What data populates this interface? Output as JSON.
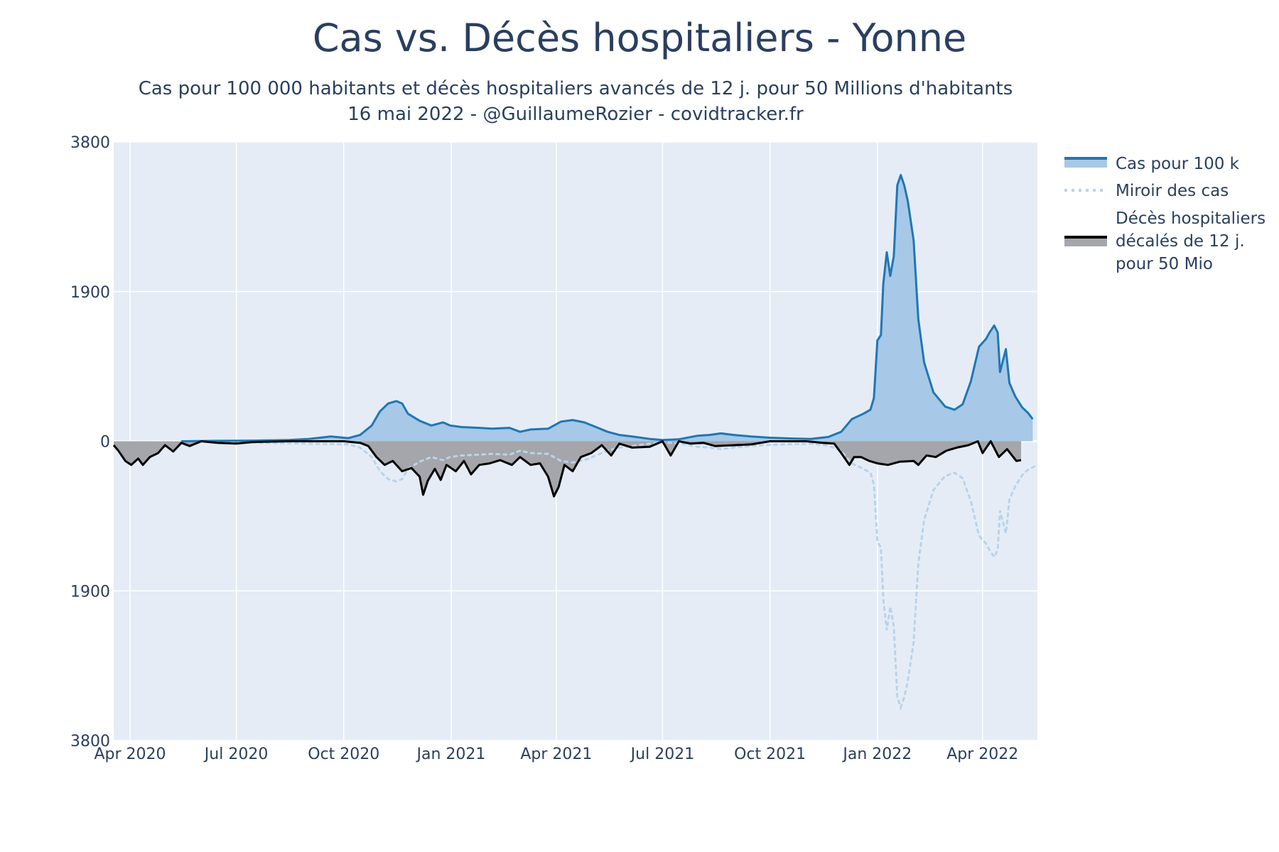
{
  "title": "Cas vs. Décès hospitaliers - Yonne",
  "subtitle_line1": "Cas pour 100 000 habitants et décès hospitaliers avancés de 12 j. pour 50 Millions d'habitants",
  "subtitle_line2": "16 mai 2022 - @GuillaumeRozier - covidtracker.fr",
  "colors": {
    "plot_bg": "#e5ecf6",
    "grid": "#ffffff",
    "cases_line": "#1f77b4",
    "cases_fill": "#a7c8e6",
    "mirror": "#b9d3ea",
    "deaths_line": "#000000",
    "deaths_fill": "#a4a6ab"
  },
  "chart_data": {
    "type": "area",
    "x_ticks": [
      "Apr 2020",
      "Jul 2020",
      "Oct 2020",
      "Jan 2021",
      "Apr 2021",
      "Jul 2021",
      "Oct 2021",
      "Jan 2022",
      "Apr 2022"
    ],
    "x_range": [
      "2020-03-18",
      "2022-05-18"
    ],
    "y_range": [
      -3800,
      3800
    ],
    "y_ticks": [
      {
        "value": 3800,
        "label": "3800"
      },
      {
        "value": 1900,
        "label": "1900"
      },
      {
        "value": 0,
        "label": "0"
      },
      {
        "value": -1900,
        "label": "1900"
      },
      {
        "value": -3800,
        "label": "3800"
      }
    ],
    "grid": true,
    "legend_position": "right",
    "series": [
      {
        "name": "Cas pour 100 k",
        "style": "line-with-area-fill",
        "points": [
          [
            "2020-05-15",
            0
          ],
          [
            "2020-06-15",
            5
          ],
          [
            "2020-07-15",
            8
          ],
          [
            "2020-08-15",
            15
          ],
          [
            "2020-09-01",
            30
          ],
          [
            "2020-09-20",
            60
          ],
          [
            "2020-10-05",
            40
          ],
          [
            "2020-10-15",
            80
          ],
          [
            "2020-10-25",
            200
          ],
          [
            "2020-11-01",
            380
          ],
          [
            "2020-11-08",
            480
          ],
          [
            "2020-11-15",
            510
          ],
          [
            "2020-11-20",
            480
          ],
          [
            "2020-11-25",
            350
          ],
          [
            "2020-12-05",
            260
          ],
          [
            "2020-12-15",
            200
          ],
          [
            "2020-12-25",
            240
          ],
          [
            "2020-12-31",
            200
          ],
          [
            "2021-01-10",
            180
          ],
          [
            "2021-01-25",
            170
          ],
          [
            "2021-02-05",
            160
          ],
          [
            "2021-02-20",
            170
          ],
          [
            "2021-03-01",
            120
          ],
          [
            "2021-03-10",
            150
          ],
          [
            "2021-03-25",
            160
          ],
          [
            "2021-04-05",
            250
          ],
          [
            "2021-04-15",
            270
          ],
          [
            "2021-04-25",
            240
          ],
          [
            "2021-05-05",
            180
          ],
          [
            "2021-05-15",
            120
          ],
          [
            "2021-05-25",
            80
          ],
          [
            "2021-06-05",
            60
          ],
          [
            "2021-06-20",
            30
          ],
          [
            "2021-07-01",
            15
          ],
          [
            "2021-07-15",
            25
          ],
          [
            "2021-07-31",
            70
          ],
          [
            "2021-08-10",
            80
          ],
          [
            "2021-08-20",
            100
          ],
          [
            "2021-08-31",
            80
          ],
          [
            "2021-09-15",
            60
          ],
          [
            "2021-10-01",
            45
          ],
          [
            "2021-10-20",
            35
          ],
          [
            "2021-11-05",
            30
          ],
          [
            "2021-11-20",
            55
          ],
          [
            "2021-12-01",
            120
          ],
          [
            "2021-12-10",
            280
          ],
          [
            "2021-12-20",
            350
          ],
          [
            "2021-12-26",
            400
          ],
          [
            "2021-12-29",
            550
          ],
          [
            "2022-01-01",
            1280
          ],
          [
            "2022-01-04",
            1350
          ],
          [
            "2022-01-06",
            2000
          ],
          [
            "2022-01-09",
            2400
          ],
          [
            "2022-01-12",
            2100
          ],
          [
            "2022-01-15",
            2350
          ],
          [
            "2022-01-18",
            3250
          ],
          [
            "2022-01-21",
            3380
          ],
          [
            "2022-01-24",
            3250
          ],
          [
            "2022-01-27",
            3050
          ],
          [
            "2022-02-01",
            2550
          ],
          [
            "2022-02-05",
            1550
          ],
          [
            "2022-02-10",
            1000
          ],
          [
            "2022-02-18",
            620
          ],
          [
            "2022-02-28",
            440
          ],
          [
            "2022-03-08",
            400
          ],
          [
            "2022-03-15",
            470
          ],
          [
            "2022-03-22",
            760
          ],
          [
            "2022-03-29",
            1200
          ],
          [
            "2022-04-04",
            1300
          ],
          [
            "2022-04-07",
            1380
          ],
          [
            "2022-04-11",
            1470
          ],
          [
            "2022-04-14",
            1380
          ],
          [
            "2022-04-16",
            880
          ],
          [
            "2022-04-21",
            1170
          ],
          [
            "2022-04-24",
            740
          ],
          [
            "2022-04-29",
            570
          ],
          [
            "2022-05-05",
            430
          ],
          [
            "2022-05-10",
            360
          ],
          [
            "2022-05-14",
            280
          ]
        ]
      },
      {
        "name": "Miroir des cas",
        "style": "dotted-line",
        "points": [
          [
            "2020-05-15",
            0
          ],
          [
            "2020-09-01",
            -30
          ],
          [
            "2020-10-05",
            -40
          ],
          [
            "2020-10-15",
            -80
          ],
          [
            "2020-10-25",
            -200
          ],
          [
            "2020-11-01",
            -380
          ],
          [
            "2020-11-08",
            -480
          ],
          [
            "2020-11-15",
            -510
          ],
          [
            "2020-11-20",
            -480
          ],
          [
            "2020-11-25",
            -350
          ],
          [
            "2020-12-05",
            -260
          ],
          [
            "2020-12-15",
            -200
          ],
          [
            "2020-12-25",
            -240
          ],
          [
            "2020-12-31",
            -200
          ],
          [
            "2021-01-10",
            -180
          ],
          [
            "2021-01-25",
            -170
          ],
          [
            "2021-02-05",
            -160
          ],
          [
            "2021-02-20",
            -170
          ],
          [
            "2021-03-01",
            -120
          ],
          [
            "2021-03-10",
            -150
          ],
          [
            "2021-03-25",
            -160
          ],
          [
            "2021-04-05",
            -250
          ],
          [
            "2021-04-15",
            -270
          ],
          [
            "2021-04-25",
            -240
          ],
          [
            "2021-05-05",
            -180
          ],
          [
            "2021-05-15",
            -120
          ],
          [
            "2021-05-25",
            -80
          ],
          [
            "2021-06-05",
            -60
          ],
          [
            "2021-06-20",
            -30
          ],
          [
            "2021-07-01",
            -15
          ],
          [
            "2021-07-15",
            -25
          ],
          [
            "2021-07-31",
            -70
          ],
          [
            "2021-08-10",
            -80
          ],
          [
            "2021-08-20",
            -100
          ],
          [
            "2021-08-31",
            -80
          ],
          [
            "2021-09-15",
            -60
          ],
          [
            "2021-10-01",
            -45
          ],
          [
            "2021-10-20",
            -35
          ],
          [
            "2021-11-05",
            -30
          ],
          [
            "2021-11-20",
            -55
          ],
          [
            "2021-12-01",
            -120
          ],
          [
            "2021-12-10",
            -280
          ],
          [
            "2021-12-20",
            -350
          ],
          [
            "2021-12-26",
            -400
          ],
          [
            "2021-12-29",
            -550
          ],
          [
            "2022-01-01",
            -1280
          ],
          [
            "2022-01-04",
            -1350
          ],
          [
            "2022-01-06",
            -2000
          ],
          [
            "2022-01-09",
            -2400
          ],
          [
            "2022-01-12",
            -2100
          ],
          [
            "2022-01-15",
            -2350
          ],
          [
            "2022-01-18",
            -3250
          ],
          [
            "2022-01-21",
            -3380
          ],
          [
            "2022-01-24",
            -3250
          ],
          [
            "2022-01-27",
            -3050
          ],
          [
            "2022-02-01",
            -2550
          ],
          [
            "2022-02-05",
            -1550
          ],
          [
            "2022-02-10",
            -1000
          ],
          [
            "2022-02-18",
            -620
          ],
          [
            "2022-02-28",
            -440
          ],
          [
            "2022-03-08",
            -400
          ],
          [
            "2022-03-15",
            -470
          ],
          [
            "2022-03-22",
            -760
          ],
          [
            "2022-03-29",
            -1200
          ],
          [
            "2022-04-04",
            -1300
          ],
          [
            "2022-04-07",
            -1380
          ],
          [
            "2022-04-11",
            -1470
          ],
          [
            "2022-04-14",
            -1380
          ],
          [
            "2022-04-16",
            -880
          ],
          [
            "2022-04-21",
            -1170
          ],
          [
            "2022-04-24",
            -740
          ],
          [
            "2022-04-29",
            -570
          ],
          [
            "2022-05-05",
            -430
          ],
          [
            "2022-05-10",
            -360
          ],
          [
            "2022-05-18",
            -300
          ]
        ]
      },
      {
        "name": "Décès hospitaliers décalés de 12 j. pour 50 Mio",
        "legend_lines": [
          "Décès hospitaliers",
          "décalés de 12 j.",
          "pour 50 Mio"
        ],
        "style": "line-with-area-fill",
        "points": [
          [
            "2020-03-18",
            -50
          ],
          [
            "2020-03-22",
            -120
          ],
          [
            "2020-03-28",
            -250
          ],
          [
            "2020-04-02",
            -300
          ],
          [
            "2020-04-08",
            -220
          ],
          [
            "2020-04-12",
            -300
          ],
          [
            "2020-04-18",
            -200
          ],
          [
            "2020-04-25",
            -150
          ],
          [
            "2020-05-01",
            -50
          ],
          [
            "2020-05-08",
            -130
          ],
          [
            "2020-05-15",
            -20
          ],
          [
            "2020-05-22",
            -60
          ],
          [
            "2020-06-01",
            0
          ],
          [
            "2020-06-15",
            -20
          ],
          [
            "2020-07-01",
            -30
          ],
          [
            "2020-07-15",
            -10
          ],
          [
            "2020-08-15",
            0
          ],
          [
            "2020-09-15",
            0
          ],
          [
            "2020-10-01",
            0
          ],
          [
            "2020-10-15",
            -20
          ],
          [
            "2020-10-22",
            -60
          ],
          [
            "2020-10-29",
            -200
          ],
          [
            "2020-11-05",
            -300
          ],
          [
            "2020-11-12",
            -250
          ],
          [
            "2020-11-20",
            -380
          ],
          [
            "2020-11-28",
            -340
          ],
          [
            "2020-12-05",
            -450
          ],
          [
            "2020-12-08",
            -680
          ],
          [
            "2020-12-12",
            -500
          ],
          [
            "2020-12-18",
            -350
          ],
          [
            "2020-12-23",
            -490
          ],
          [
            "2020-12-28",
            -300
          ],
          [
            "2021-01-05",
            -380
          ],
          [
            "2021-01-12",
            -250
          ],
          [
            "2021-01-18",
            -420
          ],
          [
            "2021-01-25",
            -300
          ],
          [
            "2021-02-03",
            -280
          ],
          [
            "2021-02-12",
            -240
          ],
          [
            "2021-02-22",
            -300
          ],
          [
            "2021-03-01",
            -200
          ],
          [
            "2021-03-10",
            -300
          ],
          [
            "2021-03-18",
            -280
          ],
          [
            "2021-03-25",
            -450
          ],
          [
            "2021-03-30",
            -700
          ],
          [
            "2021-04-03",
            -580
          ],
          [
            "2021-04-08",
            -300
          ],
          [
            "2021-04-15",
            -380
          ],
          [
            "2021-04-22",
            -200
          ],
          [
            "2021-05-01",
            -150
          ],
          [
            "2021-05-10",
            -50
          ],
          [
            "2021-05-18",
            -180
          ],
          [
            "2021-05-25",
            -30
          ],
          [
            "2021-06-05",
            -80
          ],
          [
            "2021-06-20",
            -70
          ],
          [
            "2021-07-01",
            0
          ],
          [
            "2021-07-08",
            -180
          ],
          [
            "2021-07-15",
            0
          ],
          [
            "2021-07-25",
            -30
          ],
          [
            "2021-08-05",
            -20
          ],
          [
            "2021-08-15",
            -60
          ],
          [
            "2021-09-01",
            -50
          ],
          [
            "2021-09-15",
            -40
          ],
          [
            "2021-10-01",
            0
          ],
          [
            "2021-10-15",
            0
          ],
          [
            "2021-11-01",
            0
          ],
          [
            "2021-11-15",
            -20
          ],
          [
            "2021-11-25",
            -30
          ],
          [
            "2021-12-01",
            -150
          ],
          [
            "2021-12-08",
            -300
          ],
          [
            "2021-12-12",
            -200
          ],
          [
            "2021-12-18",
            -200
          ],
          [
            "2021-12-25",
            -250
          ],
          [
            "2022-01-01",
            -280
          ],
          [
            "2022-01-10",
            -300
          ],
          [
            "2022-01-20",
            -260
          ],
          [
            "2022-02-01",
            -250
          ],
          [
            "2022-02-05",
            -300
          ],
          [
            "2022-02-12",
            -180
          ],
          [
            "2022-02-20",
            -200
          ],
          [
            "2022-03-01",
            -120
          ],
          [
            "2022-03-10",
            -80
          ],
          [
            "2022-03-20",
            -50
          ],
          [
            "2022-03-28",
            0
          ],
          [
            "2022-04-01",
            -150
          ],
          [
            "2022-04-08",
            0
          ],
          [
            "2022-04-15",
            -200
          ],
          [
            "2022-04-22",
            -100
          ],
          [
            "2022-04-30",
            -250
          ],
          [
            "2022-05-04",
            -240
          ]
        ]
      }
    ]
  }
}
